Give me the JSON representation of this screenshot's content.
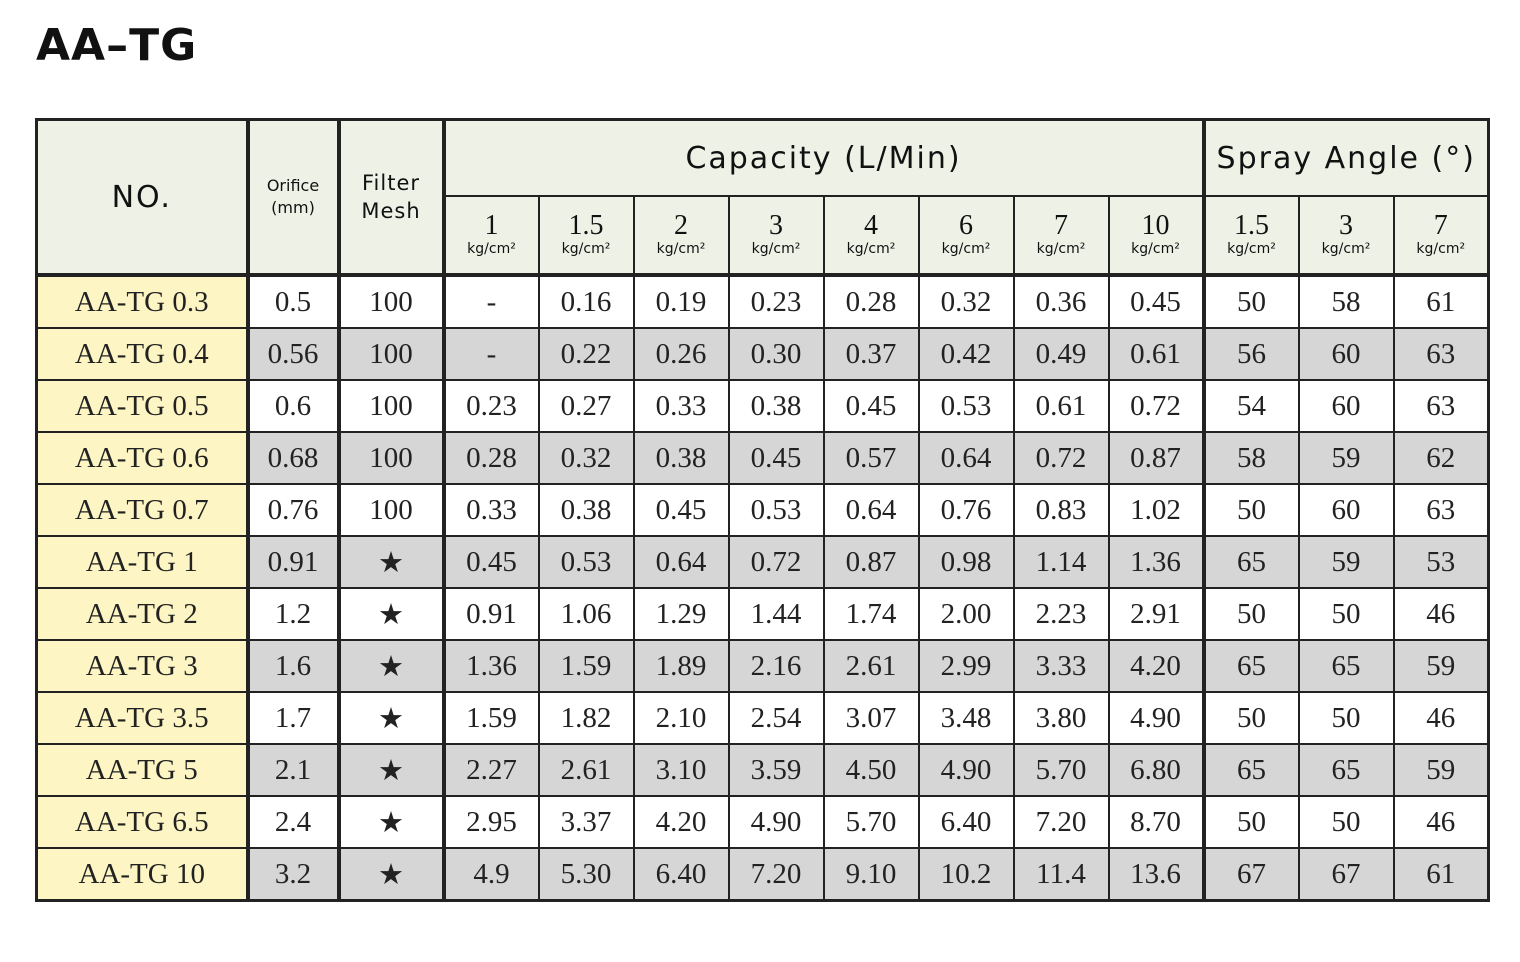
{
  "title": "AA–TG",
  "headers": {
    "no": "NO.",
    "orifice_line1": "Orifice",
    "orifice_line2": "(mm)",
    "mesh_line1": "Filter",
    "mesh_line2": "Mesh",
    "capacity": "Capacity (L/Min)",
    "spray_angle": "Spray Angle (°)",
    "unit": "kg/cm²",
    "capacity_pressures": [
      "1",
      "1.5",
      "2",
      "3",
      "4",
      "6",
      "7",
      "10"
    ],
    "angle_pressures": [
      "1.5",
      "3",
      "7"
    ]
  },
  "rows": [
    {
      "model": "AA-TG 0.3",
      "orifice": "0.5",
      "mesh": "100",
      "capacity": [
        "-",
        "0.16",
        "0.19",
        "0.23",
        "0.28",
        "0.32",
        "0.36",
        "0.45"
      ],
      "angle": [
        "50",
        "58",
        "61"
      ]
    },
    {
      "model": "AA-TG 0.4",
      "orifice": "0.56",
      "mesh": "100",
      "capacity": [
        "-",
        "0.22",
        "0.26",
        "0.30",
        "0.37",
        "0.42",
        "0.49",
        "0.61"
      ],
      "angle": [
        "56",
        "60",
        "63"
      ]
    },
    {
      "model": "AA-TG 0.5",
      "orifice": "0.6",
      "mesh": "100",
      "capacity": [
        "0.23",
        "0.27",
        "0.33",
        "0.38",
        "0.45",
        "0.53",
        "0.61",
        "0.72"
      ],
      "angle": [
        "54",
        "60",
        "63"
      ]
    },
    {
      "model": "AA-TG 0.6",
      "orifice": "0.68",
      "mesh": "100",
      "capacity": [
        "0.28",
        "0.32",
        "0.38",
        "0.45",
        "0.57",
        "0.64",
        "0.72",
        "0.87"
      ],
      "angle": [
        "58",
        "59",
        "62"
      ]
    },
    {
      "model": "AA-TG 0.7",
      "orifice": "0.76",
      "mesh": "100",
      "capacity": [
        "0.33",
        "0.38",
        "0.45",
        "0.53",
        "0.64",
        "0.76",
        "0.83",
        "1.02"
      ],
      "angle": [
        "50",
        "60",
        "63"
      ]
    },
    {
      "model": "AA-TG 1",
      "orifice": "0.91",
      "mesh": "★",
      "capacity": [
        "0.45",
        "0.53",
        "0.64",
        "0.72",
        "0.87",
        "0.98",
        "1.14",
        "1.36"
      ],
      "angle": [
        "65",
        "59",
        "53"
      ]
    },
    {
      "model": "AA-TG 2",
      "orifice": "1.2",
      "mesh": "★",
      "capacity": [
        "0.91",
        "1.06",
        "1.29",
        "1.44",
        "1.74",
        "2.00",
        "2.23",
        "2.91"
      ],
      "angle": [
        "50",
        "50",
        "46"
      ]
    },
    {
      "model": "AA-TG 3",
      "orifice": "1.6",
      "mesh": "★",
      "capacity": [
        "1.36",
        "1.59",
        "1.89",
        "2.16",
        "2.61",
        "2.99",
        "3.33",
        "4.20"
      ],
      "angle": [
        "65",
        "65",
        "59"
      ]
    },
    {
      "model": "AA-TG 3.5",
      "orifice": "1.7",
      "mesh": "★",
      "capacity": [
        "1.59",
        "1.82",
        "2.10",
        "2.54",
        "3.07",
        "3.48",
        "3.80",
        "4.90"
      ],
      "angle": [
        "50",
        "50",
        "46"
      ]
    },
    {
      "model": "AA-TG 5",
      "orifice": "2.1",
      "mesh": "★",
      "capacity": [
        "2.27",
        "2.61",
        "3.10",
        "3.59",
        "4.50",
        "4.90",
        "5.70",
        "6.80"
      ],
      "angle": [
        "65",
        "65",
        "59"
      ]
    },
    {
      "model": "AA-TG 6.5",
      "orifice": "2.4",
      "mesh": "★",
      "capacity": [
        "2.95",
        "3.37",
        "4.20",
        "4.90",
        "5.70",
        "6.40",
        "7.20",
        "8.70"
      ],
      "angle": [
        "50",
        "50",
        "46"
      ]
    },
    {
      "model": "AA-TG 10",
      "orifice": "3.2",
      "mesh": "★",
      "capacity": [
        "4.9",
        "5.30",
        "6.40",
        "7.20",
        "9.10",
        "10.2",
        "11.4",
        "13.6"
      ],
      "angle": [
        "67",
        "67",
        "61"
      ]
    }
  ]
}
